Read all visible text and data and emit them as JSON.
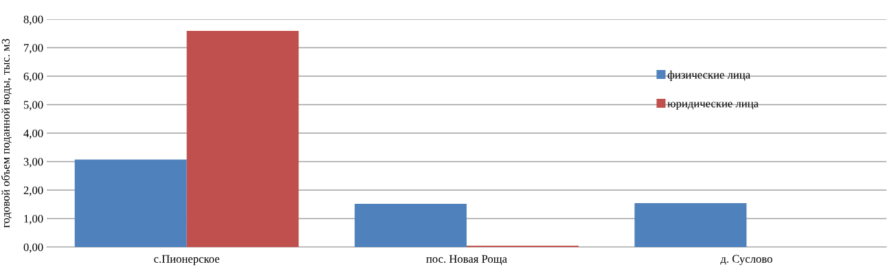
{
  "chart_data": {
    "type": "bar",
    "ylabel": "годовой объем поданной воды, тыс. м3",
    "categories": [
      "с.Пионерское",
      "пос. Новая Роща",
      "д. Суслово"
    ],
    "series": [
      {
        "name": "физические лица",
        "color": "#4f81bd",
        "values": [
          3.07,
          1.52,
          1.54
        ]
      },
      {
        "name": "юридические лица",
        "color": "#c0504d",
        "values": [
          7.59,
          0.05,
          null
        ]
      }
    ],
    "ylim": [
      0,
      8
    ],
    "yticks": [
      {
        "value": 0,
        "label": "0,00"
      },
      {
        "value": 1,
        "label": "1,00"
      },
      {
        "value": 2,
        "label": "2,00"
      },
      {
        "value": 3,
        "label": "3,00"
      },
      {
        "value": 4,
        "label": "4,00"
      },
      {
        "value": 5,
        "label": "5,00"
      },
      {
        "value": 6,
        "label": "6,00"
      },
      {
        "value": 7,
        "label": "7,00"
      },
      {
        "value": 8,
        "label": "8,00"
      }
    ],
    "grid": "y",
    "legend": "top right"
  }
}
